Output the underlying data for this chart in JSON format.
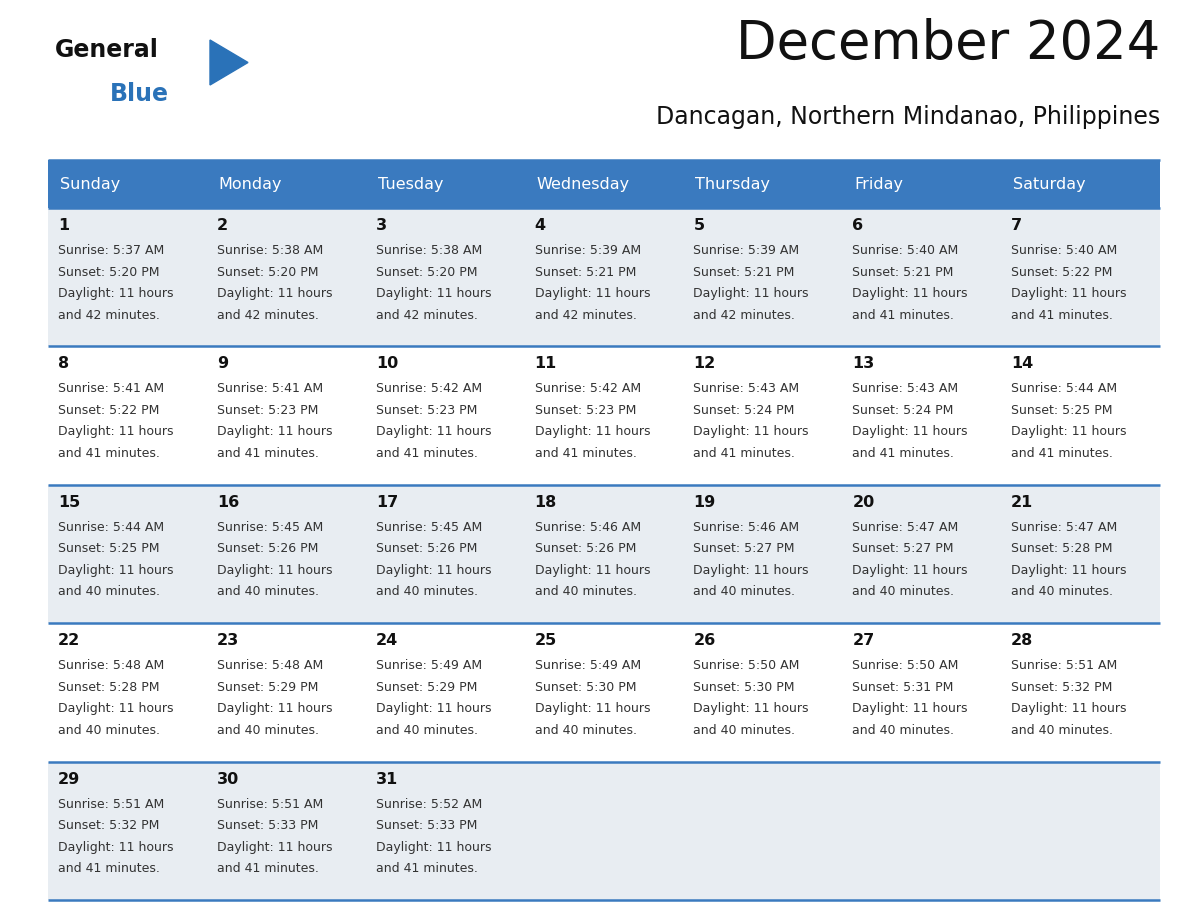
{
  "title": "December 2024",
  "subtitle": "Dancagan, Northern Mindanao, Philippines",
  "header_bg_color": "#3a7abf",
  "header_text_color": "#ffffff",
  "days_of_week": [
    "Sunday",
    "Monday",
    "Tuesday",
    "Wednesday",
    "Thursday",
    "Friday",
    "Saturday"
  ],
  "row_bg_light": "#e8edf2",
  "row_bg_white": "#ffffff",
  "separator_color": "#3a7abf",
  "day_number_color": "#111111",
  "cell_text_color": "#333333",
  "logo_general_color": "#111111",
  "logo_blue_color": "#2a72b8",
  "logo_triangle_color": "#2a72b8",
  "calendar": [
    [
      {
        "day": 1,
        "sunrise": "5:37 AM",
        "sunset": "5:20 PM",
        "daylight_hours": 11,
        "daylight_minutes": 42
      },
      {
        "day": 2,
        "sunrise": "5:38 AM",
        "sunset": "5:20 PM",
        "daylight_hours": 11,
        "daylight_minutes": 42
      },
      {
        "day": 3,
        "sunrise": "5:38 AM",
        "sunset": "5:20 PM",
        "daylight_hours": 11,
        "daylight_minutes": 42
      },
      {
        "day": 4,
        "sunrise": "5:39 AM",
        "sunset": "5:21 PM",
        "daylight_hours": 11,
        "daylight_minutes": 42
      },
      {
        "day": 5,
        "sunrise": "5:39 AM",
        "sunset": "5:21 PM",
        "daylight_hours": 11,
        "daylight_minutes": 42
      },
      {
        "day": 6,
        "sunrise": "5:40 AM",
        "sunset": "5:21 PM",
        "daylight_hours": 11,
        "daylight_minutes": 41
      },
      {
        "day": 7,
        "sunrise": "5:40 AM",
        "sunset": "5:22 PM",
        "daylight_hours": 11,
        "daylight_minutes": 41
      }
    ],
    [
      {
        "day": 8,
        "sunrise": "5:41 AM",
        "sunset": "5:22 PM",
        "daylight_hours": 11,
        "daylight_minutes": 41
      },
      {
        "day": 9,
        "sunrise": "5:41 AM",
        "sunset": "5:23 PM",
        "daylight_hours": 11,
        "daylight_minutes": 41
      },
      {
        "day": 10,
        "sunrise": "5:42 AM",
        "sunset": "5:23 PM",
        "daylight_hours": 11,
        "daylight_minutes": 41
      },
      {
        "day": 11,
        "sunrise": "5:42 AM",
        "sunset": "5:23 PM",
        "daylight_hours": 11,
        "daylight_minutes": 41
      },
      {
        "day": 12,
        "sunrise": "5:43 AM",
        "sunset": "5:24 PM",
        "daylight_hours": 11,
        "daylight_minutes": 41
      },
      {
        "day": 13,
        "sunrise": "5:43 AM",
        "sunset": "5:24 PM",
        "daylight_hours": 11,
        "daylight_minutes": 41
      },
      {
        "day": 14,
        "sunrise": "5:44 AM",
        "sunset": "5:25 PM",
        "daylight_hours": 11,
        "daylight_minutes": 41
      }
    ],
    [
      {
        "day": 15,
        "sunrise": "5:44 AM",
        "sunset": "5:25 PM",
        "daylight_hours": 11,
        "daylight_minutes": 40
      },
      {
        "day": 16,
        "sunrise": "5:45 AM",
        "sunset": "5:26 PM",
        "daylight_hours": 11,
        "daylight_minutes": 40
      },
      {
        "day": 17,
        "sunrise": "5:45 AM",
        "sunset": "5:26 PM",
        "daylight_hours": 11,
        "daylight_minutes": 40
      },
      {
        "day": 18,
        "sunrise": "5:46 AM",
        "sunset": "5:26 PM",
        "daylight_hours": 11,
        "daylight_minutes": 40
      },
      {
        "day": 19,
        "sunrise": "5:46 AM",
        "sunset": "5:27 PM",
        "daylight_hours": 11,
        "daylight_minutes": 40
      },
      {
        "day": 20,
        "sunrise": "5:47 AM",
        "sunset": "5:27 PM",
        "daylight_hours": 11,
        "daylight_minutes": 40
      },
      {
        "day": 21,
        "sunrise": "5:47 AM",
        "sunset": "5:28 PM",
        "daylight_hours": 11,
        "daylight_minutes": 40
      }
    ],
    [
      {
        "day": 22,
        "sunrise": "5:48 AM",
        "sunset": "5:28 PM",
        "daylight_hours": 11,
        "daylight_minutes": 40
      },
      {
        "day": 23,
        "sunrise": "5:48 AM",
        "sunset": "5:29 PM",
        "daylight_hours": 11,
        "daylight_minutes": 40
      },
      {
        "day": 24,
        "sunrise": "5:49 AM",
        "sunset": "5:29 PM",
        "daylight_hours": 11,
        "daylight_minutes": 40
      },
      {
        "day": 25,
        "sunrise": "5:49 AM",
        "sunset": "5:30 PM",
        "daylight_hours": 11,
        "daylight_minutes": 40
      },
      {
        "day": 26,
        "sunrise": "5:50 AM",
        "sunset": "5:30 PM",
        "daylight_hours": 11,
        "daylight_minutes": 40
      },
      {
        "day": 27,
        "sunrise": "5:50 AM",
        "sunset": "5:31 PM",
        "daylight_hours": 11,
        "daylight_minutes": 40
      },
      {
        "day": 28,
        "sunrise": "5:51 AM",
        "sunset": "5:32 PM",
        "daylight_hours": 11,
        "daylight_minutes": 40
      }
    ],
    [
      {
        "day": 29,
        "sunrise": "5:51 AM",
        "sunset": "5:32 PM",
        "daylight_hours": 11,
        "daylight_minutes": 41
      },
      {
        "day": 30,
        "sunrise": "5:51 AM",
        "sunset": "5:33 PM",
        "daylight_hours": 11,
        "daylight_minutes": 41
      },
      {
        "day": 31,
        "sunrise": "5:52 AM",
        "sunset": "5:33 PM",
        "daylight_hours": 11,
        "daylight_minutes": 41
      },
      null,
      null,
      null,
      null
    ]
  ]
}
